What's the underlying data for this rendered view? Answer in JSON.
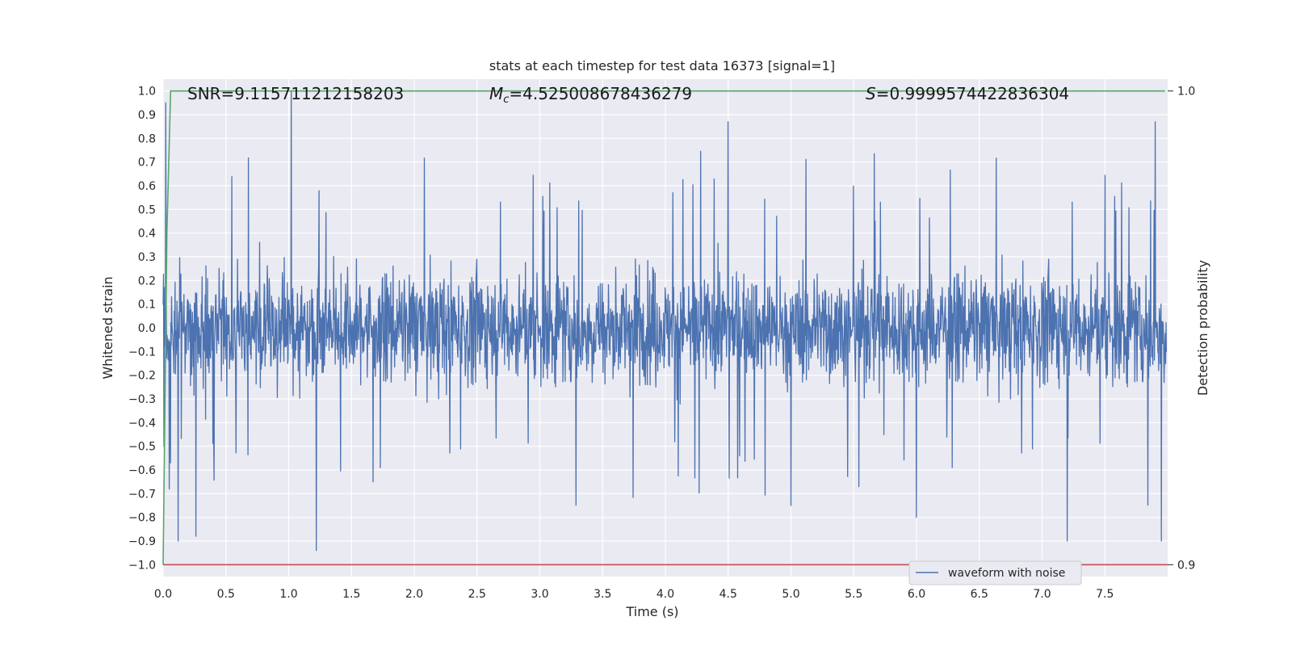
{
  "chart_data": {
    "type": "line",
    "title": "stats at each timestep for test data 16373 [signal=1]",
    "xlabel": "Time (s)",
    "ylabel": "Whitened strain",
    "ylabel_right": "Detection probability",
    "xlim": [
      0.0,
      8.0
    ],
    "ylim": [
      -1.05,
      1.05
    ],
    "ylim_right": [
      0.8975,
      1.0025
    ],
    "x_ticks": [
      "0.0",
      "0.5",
      "1.0",
      "1.5",
      "2.0",
      "2.5",
      "3.0",
      "3.5",
      "4.0",
      "4.5",
      "5.0",
      "5.5",
      "6.0",
      "6.5",
      "7.0",
      "7.5"
    ],
    "y_ticks": [
      "1.0",
      "0.9",
      "0.8",
      "0.7",
      "0.6",
      "0.5",
      "0.4",
      "0.3",
      "0.2",
      "0.1",
      "0.0",
      "-0.1",
      "-0.2",
      "-0.3",
      "-0.4",
      "-0.5",
      "-0.6",
      "-0.7",
      "-0.8",
      "-0.9",
      "-1.0"
    ],
    "y_ticks_right": [
      "1.0",
      "0.9"
    ],
    "grid": true,
    "legend_position": "lower-right",
    "annotations": {
      "snr": "SNR=9.115711212158203",
      "mc_symbol": "M",
      "mc_sub": "c",
      "mc_value": "=4.525008678436279",
      "s_symbol": "S",
      "s_value": "=0.9999574422836304"
    },
    "series": [
      {
        "name": "waveform with noise",
        "color": "#4c72b0",
        "x_range": [
          0.0,
          7.99
        ],
        "description_points": {
          "x": [
            0.02,
            0.05,
            0.12,
            0.26,
            1.02,
            1.22,
            4.5,
            5.0,
            6.0,
            7.2,
            7.9,
            7.95
          ],
          "y": [
            0.95,
            -0.68,
            -0.9,
            -0.88,
            1.0,
            -0.94,
            0.87,
            -0.75,
            -0.8,
            -0.9,
            0.87,
            -0.9
          ]
        }
      },
      {
        "name": "detection probability",
        "color": "#55a868",
        "x": [
          0.0,
          0.03,
          0.06,
          7.98
        ],
        "y": [
          0.9,
          0.97,
          1.0,
          1.0
        ]
      }
    ],
    "threshold_line": {
      "value": 0.9,
      "color": "#c44e52"
    }
  }
}
